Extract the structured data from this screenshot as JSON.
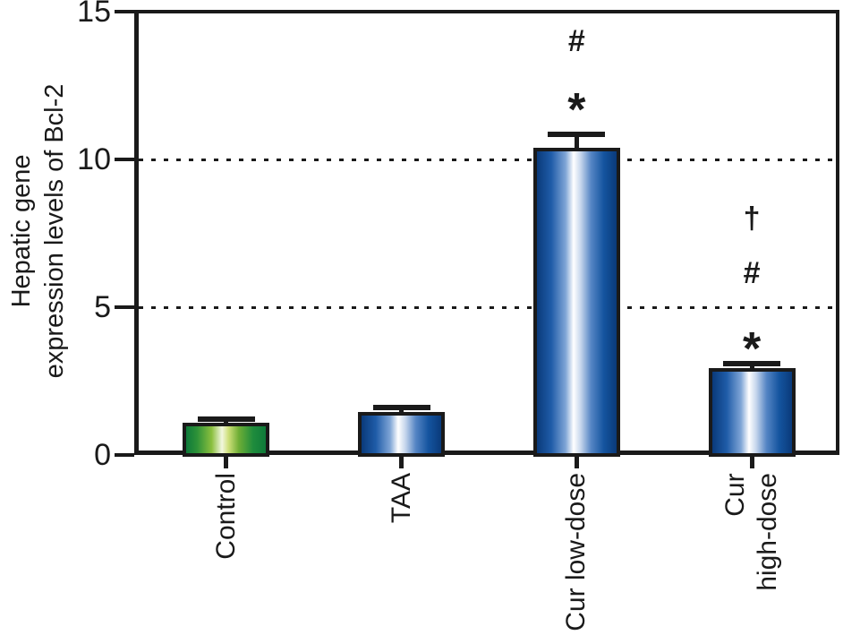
{
  "figure": {
    "background": "#ffffff",
    "axis_color": "#1a1a1a"
  },
  "chart_data": {
    "type": "bar",
    "title": "",
    "xlabel": "",
    "ylabel": "Hepatic gene\nexpression levels of Bcl-2",
    "ylim": [
      0,
      15
    ],
    "yticks": [
      0,
      5,
      10,
      15
    ],
    "gridlines": {
      "values": [
        5,
        10
      ],
      "style": "dotted"
    },
    "legend": null,
    "categories": [
      "Control",
      "TAA",
      "Cur low-dose",
      "Cur\nhigh-dose"
    ],
    "values": [
      1.1,
      1.45,
      10.4,
      2.95
    ],
    "errors": [
      0.12,
      0.15,
      0.45,
      0.15
    ],
    "bar_color_keys": [
      "green",
      "blue",
      "blue",
      "blue"
    ],
    "gradients": {
      "green": [
        "#0e7a3a 0%",
        "#2e9238 14%",
        "#8abf3e 32%",
        "#f2f7df 45%",
        "#cfe07a 53%",
        "#6fae36 66%",
        "#1f8c3c 84%",
        "#0e7a3a 100%"
      ],
      "blue": [
        "#0a3a7a 0%",
        "#1f5ca8 18%",
        "#7fa5d6 36%",
        "#ffffff 46%",
        "#c6d6ec 55%",
        "#5585c4 68%",
        "#14549f 84%",
        "#0a3a7a 100%"
      ]
    },
    "annotations": [
      {
        "category_index": 2,
        "marks": [
          {
            "symbol": "#",
            "y_value": 14.0
          },
          {
            "symbol": "*",
            "y_value": 11.95
          }
        ]
      },
      {
        "category_index": 3,
        "marks": [
          {
            "symbol": "†",
            "y_value": 8.0
          },
          {
            "symbol": "#",
            "y_value": 6.15
          },
          {
            "symbol": "*",
            "y_value": 3.85
          }
        ]
      }
    ]
  }
}
